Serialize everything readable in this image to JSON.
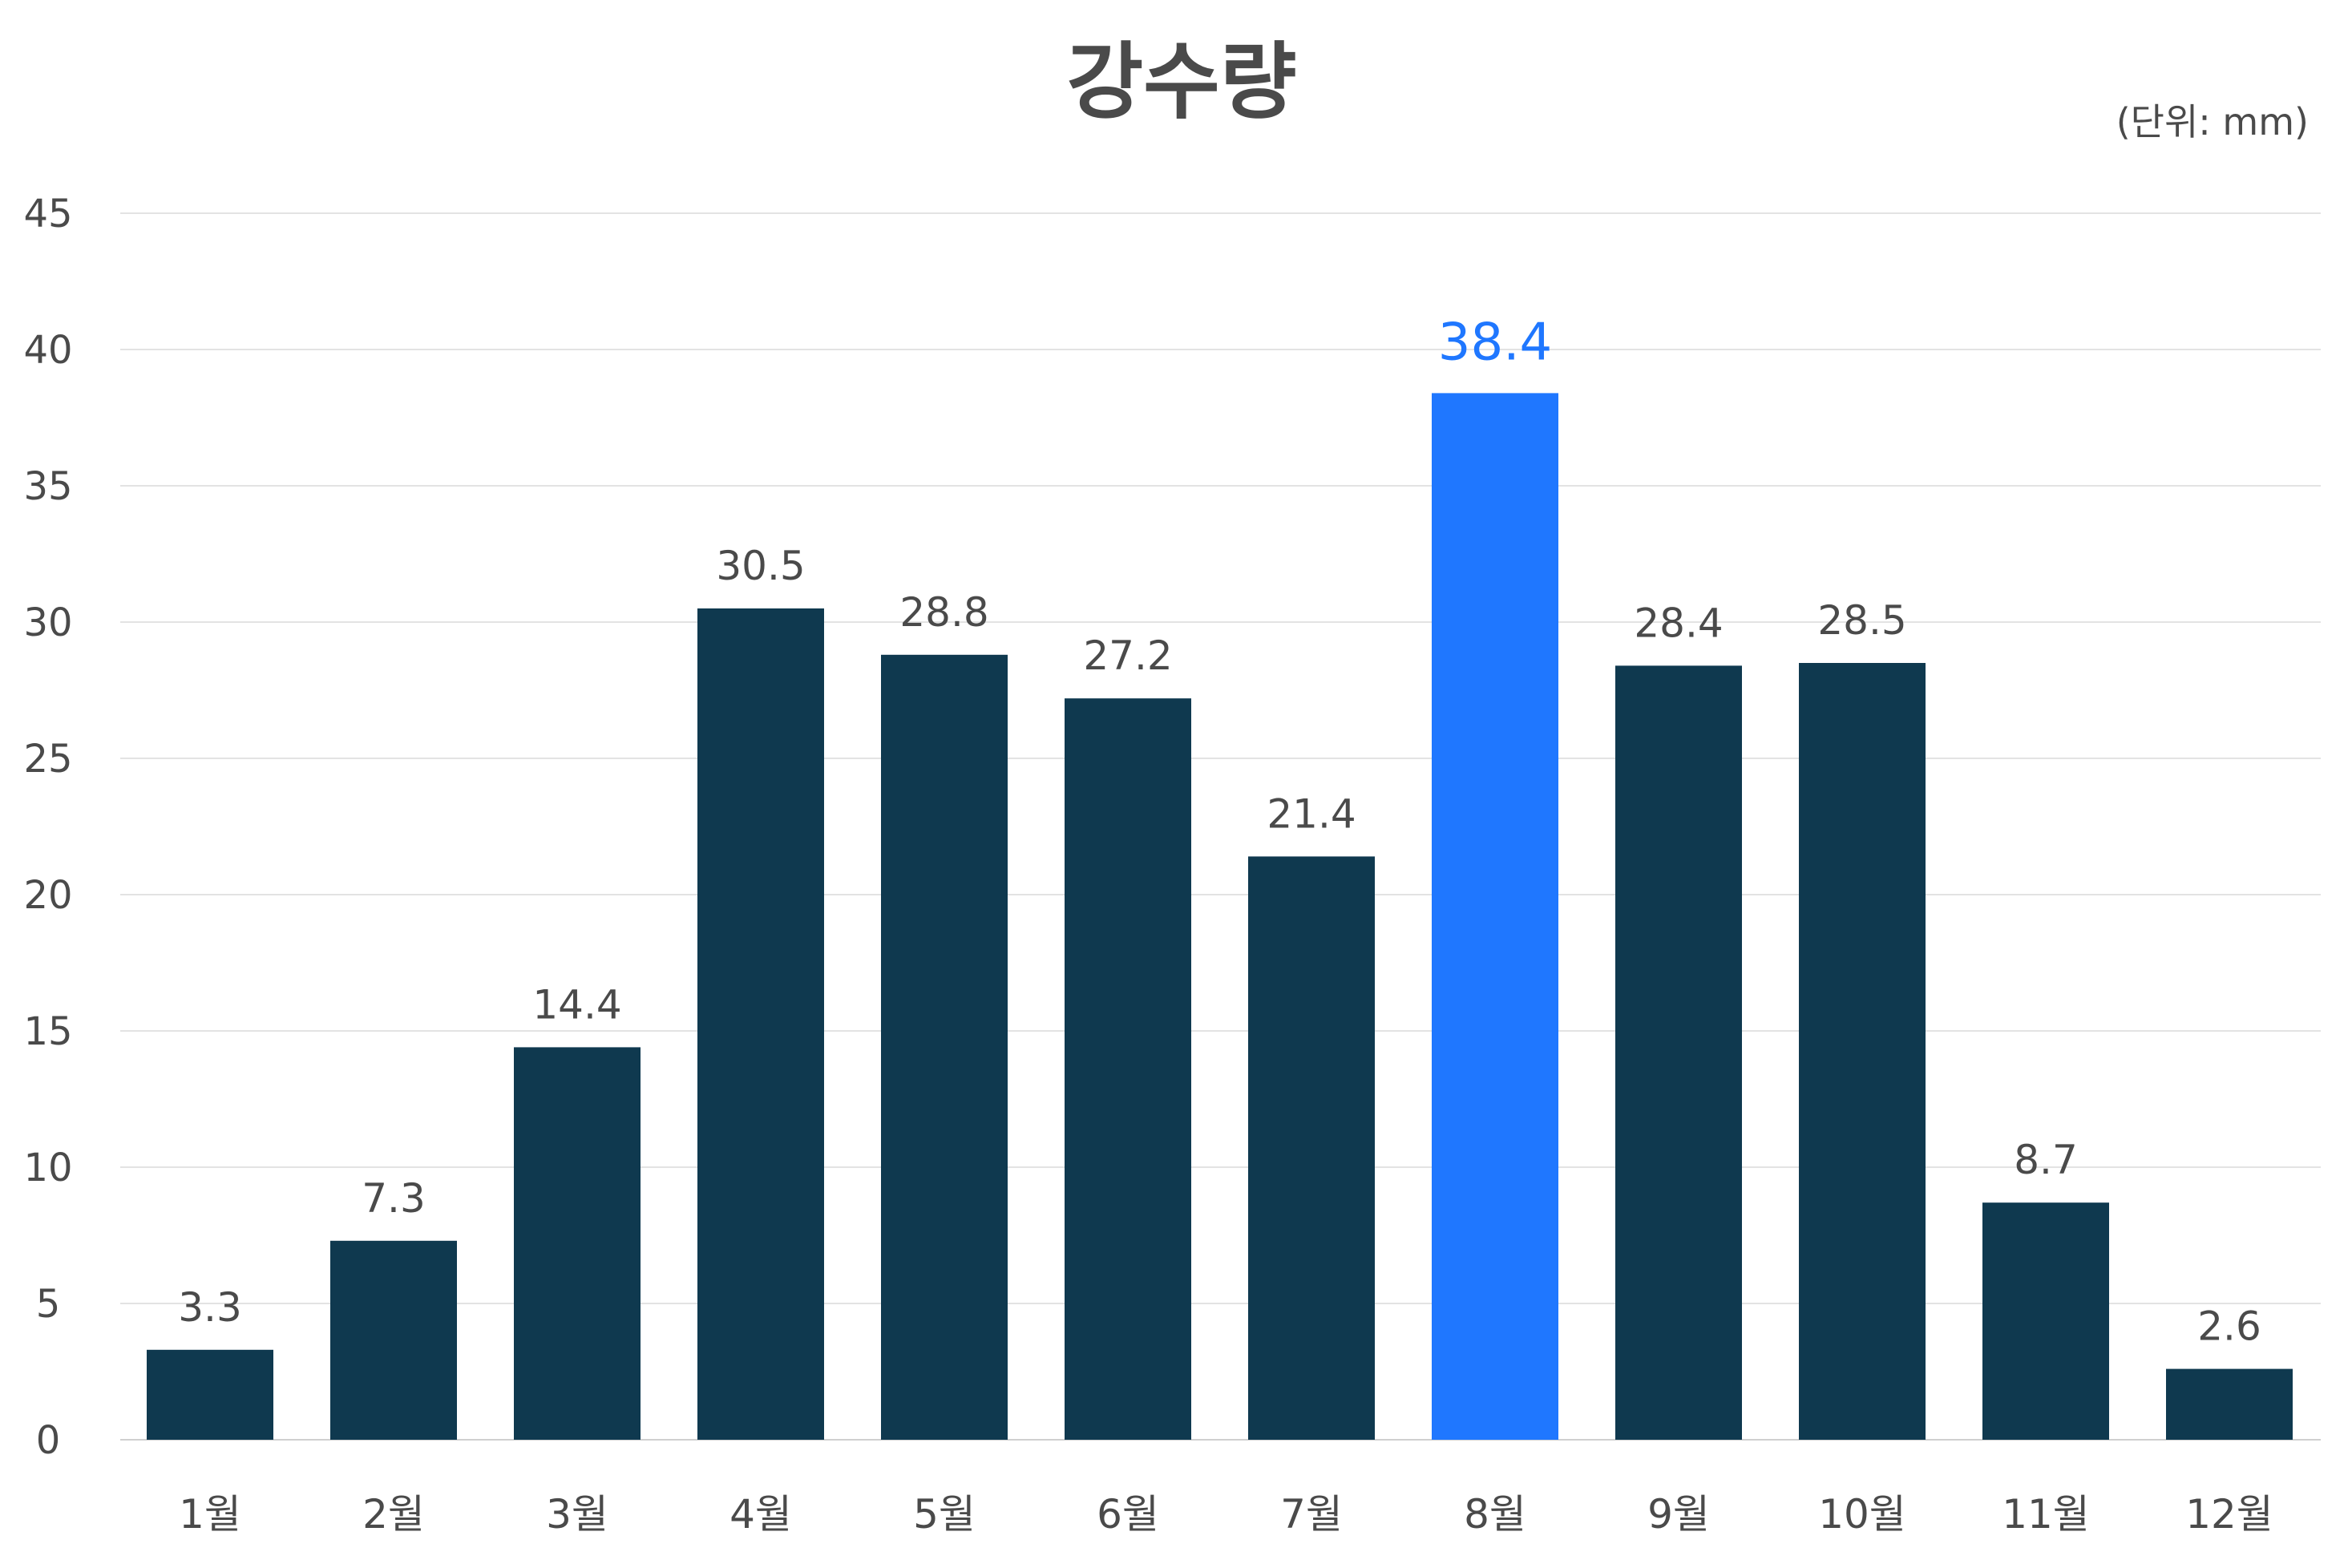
{
  "chart_data": {
    "type": "bar",
    "title": "강수량",
    "unit_note": "(단위: mm)",
    "categories": [
      "1월",
      "2월",
      "3월",
      "4월",
      "5월",
      "6월",
      "7월",
      "8월",
      "9월",
      "10월",
      "11월",
      "12월"
    ],
    "values": [
      3.3,
      7.3,
      14.4,
      30.5,
      28.8,
      27.2,
      21.4,
      38.4,
      28.4,
      28.5,
      8.7,
      2.6
    ],
    "value_labels": [
      "3.3",
      "7.3",
      "14.4",
      "30.5",
      "28.8",
      "27.2",
      "21.4",
      "38.4",
      "28.4",
      "28.5",
      "8.7",
      "2.6"
    ],
    "highlight_index": 7,
    "ylim": [
      0,
      45
    ],
    "yticks": [
      "0",
      "5",
      "10",
      "15",
      "20",
      "25",
      "30",
      "35",
      "40",
      "45"
    ],
    "grid": true,
    "xlabel": "",
    "ylabel": "",
    "colors": {
      "bar": "#0f394f",
      "highlight": "#1f77ff"
    }
  }
}
